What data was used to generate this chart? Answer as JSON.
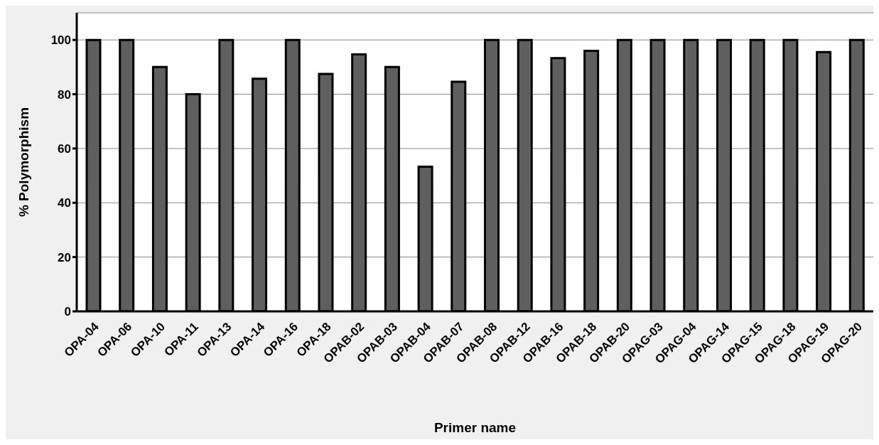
{
  "chart_data": {
    "type": "bar",
    "xlabel": "Primer name",
    "ylabel": "% Polymorphism",
    "categories": [
      "OPA-04",
      "OPA-06",
      "OPA-10",
      "OPA-11",
      "OPA-13",
      "OPA-14",
      "OPA-16",
      "OPA-18",
      "OPAB-02",
      "OPAB-03",
      "OPAB-04",
      "OPAB-07",
      "OPAB-08",
      "OPAB-12",
      "OPAB-16",
      "OPAB-18",
      "OPAB-20",
      "OPAG-03",
      "OPAG-04",
      "OPAG-14",
      "OPAG-15",
      "OPAG-18",
      "OPAG-19",
      "OPAG-20"
    ],
    "values": [
      100,
      100,
      90,
      80,
      100,
      85.7,
      100,
      87.5,
      94.7,
      90,
      53.3,
      84.6,
      100,
      100,
      93.3,
      96,
      100,
      100,
      100,
      100,
      100,
      100,
      95.5,
      100
    ],
    "color": "#5f5f5f",
    "ylim": [
      0,
      110
    ],
    "yticks": [
      0,
      20,
      40,
      60,
      80,
      100
    ],
    "grid": "y"
  }
}
